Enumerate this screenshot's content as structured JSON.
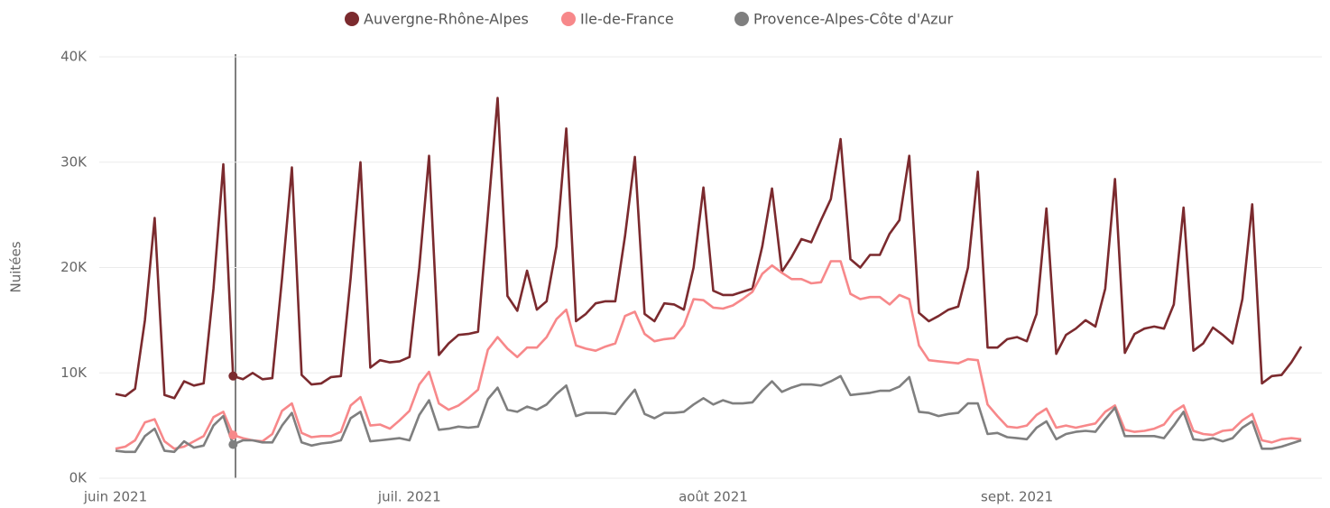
{
  "chart_data": {
    "type": "line",
    "y_axis_label": "Nuitées",
    "categories": [
      "juin 2021",
      null,
      null,
      null,
      null,
      null,
      null,
      null,
      null,
      null,
      null,
      null,
      null,
      null,
      null,
      null,
      null,
      null,
      null,
      null,
      null,
      null,
      null,
      null,
      null,
      null,
      null,
      null,
      null,
      null,
      "juil. 2021",
      null,
      null,
      null,
      null,
      null,
      null,
      null,
      null,
      null,
      null,
      null,
      null,
      null,
      null,
      null,
      null,
      null,
      null,
      null,
      null,
      null,
      null,
      null,
      null,
      null,
      null,
      null,
      null,
      null,
      null,
      "août 2021",
      null,
      null,
      null,
      null,
      null,
      null,
      null,
      null,
      null,
      null,
      null,
      null,
      null,
      null,
      null,
      null,
      null,
      null,
      null,
      null,
      null,
      null,
      null,
      null,
      null,
      null,
      null,
      null,
      null,
      null,
      "sept. 2021",
      null,
      null,
      null,
      null,
      null,
      null,
      null,
      null,
      null,
      null,
      null,
      null,
      null,
      null,
      null,
      null,
      null,
      null,
      null,
      null,
      null,
      null,
      null,
      null,
      null,
      null,
      null,
      null,
      null
    ],
    "series": [
      {
        "name": "Auvergne-Rhône-Alpes",
        "color": "#7b2a2e",
        "values": [
          8000,
          7800,
          8500,
          15000,
          24700,
          7900,
          7600,
          9200,
          8800,
          9000,
          18000,
          29800,
          9700,
          9400,
          10000,
          9400,
          9500,
          19000,
          29500,
          9800,
          8900,
          9000,
          9600,
          9700,
          19000,
          30000,
          10500,
          11200,
          11000,
          11100,
          11500,
          20000,
          30600,
          11700,
          12800,
          13600,
          13700,
          13900,
          25000,
          36100,
          17300,
          15900,
          19700,
          16000,
          16800,
          22000,
          33200,
          14900,
          15600,
          16600,
          16800,
          16800,
          23000,
          30500,
          15600,
          14900,
          16600,
          16500,
          16000,
          20000,
          27600,
          17800,
          17400,
          17400,
          17700,
          18000,
          22000,
          27500,
          19600,
          21000,
          22700,
          22400,
          24500,
          26500,
          32200,
          20800,
          20000,
          21200,
          21200,
          23200,
          24500,
          30600,
          15700,
          14900,
          15400,
          16000,
          16300,
          20000,
          29100,
          12400,
          12400,
          13200,
          13400,
          13000,
          15600,
          25600,
          11800,
          13600,
          14200,
          15000,
          14400,
          18000,
          28400,
          11900,
          13700,
          14200,
          14400,
          14200,
          16500,
          25700,
          12100,
          12800,
          14300,
          13600,
          12800,
          17000,
          26000,
          9000,
          9700,
          9800,
          11000,
          12500
        ]
      },
      {
        "name": "Ile-de-France",
        "color": "#f7888a",
        "values": [
          2800,
          3000,
          3600,
          5300,
          5600,
          3500,
          2800,
          3000,
          3500,
          4000,
          5800,
          6300,
          4100,
          3800,
          3600,
          3500,
          4200,
          6400,
          7100,
          4300,
          3900,
          4000,
          4000,
          4400,
          6900,
          7700,
          5000,
          5100,
          4700,
          5500,
          6400,
          8900,
          10100,
          7100,
          6500,
          6900,
          7600,
          8400,
          12200,
          13400,
          12300,
          11500,
          12400,
          12400,
          13400,
          15100,
          16000,
          12600,
          12300,
          12100,
          12500,
          12800,
          15400,
          15800,
          13700,
          13000,
          13200,
          13300,
          14500,
          17000,
          16900,
          16200,
          16100,
          16400,
          17000,
          17700,
          19400,
          20200,
          19500,
          18900,
          18900,
          18500,
          18600,
          20600,
          20600,
          17500,
          17000,
          17200,
          17200,
          16500,
          17400,
          17000,
          12600,
          11200,
          11100,
          11000,
          10900,
          11300,
          11200,
          7000,
          5900,
          4900,
          4800,
          5000,
          6000,
          6600,
          4800,
          5000,
          4800,
          5000,
          5200,
          6300,
          6900,
          4600,
          4400,
          4500,
          4700,
          5100,
          6300,
          6900,
          4500,
          4200,
          4100,
          4500,
          4600,
          5500,
          6100,
          3600,
          3400,
          3700,
          3800,
          3700
        ]
      },
      {
        "name": "Provence-Alpes-Côte d'Azur",
        "color": "#7f7f7f",
        "values": [
          2600,
          2500,
          2500,
          4000,
          4700,
          2600,
          2500,
          3500,
          2900,
          3100,
          5000,
          5900,
          3200,
          3600,
          3600,
          3400,
          3400,
          5000,
          6200,
          3400,
          3100,
          3300,
          3400,
          3600,
          5700,
          6300,
          3500,
          3600,
          3700,
          3800,
          3600,
          6000,
          7400,
          4600,
          4700,
          4900,
          4800,
          4900,
          7500,
          8600,
          6500,
          6300,
          6800,
          6500,
          7000,
          8000,
          8800,
          5900,
          6200,
          6200,
          6200,
          6100,
          7300,
          8400,
          6100,
          5700,
          6200,
          6200,
          6300,
          7000,
          7600,
          7000,
          7400,
          7100,
          7100,
          7200,
          8300,
          9200,
          8200,
          8600,
          8900,
          8900,
          8800,
          9200,
          9700,
          7900,
          8000,
          8100,
          8300,
          8300,
          8700,
          9600,
          6300,
          6200,
          5900,
          6100,
          6200,
          7100,
          7100,
          4200,
          4300,
          3900,
          3800,
          3700,
          4800,
          5400,
          3700,
          4200,
          4400,
          4500,
          4400,
          5600,
          6700,
          4000,
          4000,
          4000,
          4000,
          3800,
          5000,
          6300,
          3700,
          3600,
          3800,
          3500,
          3800,
          4800,
          5400,
          2800,
          2800,
          3000,
          3300,
          3600
        ]
      }
    ],
    "ylim": [
      0,
      40000
    ],
    "yticks": [
      {
        "value": 0,
        "label": "0K"
      },
      {
        "value": 10000,
        "label": "10K"
      },
      {
        "value": 20000,
        "label": "20K"
      },
      {
        "value": 30000,
        "label": "30K"
      },
      {
        "value": 40000,
        "label": "40K"
      }
    ],
    "grid": true,
    "legend": "top"
  }
}
